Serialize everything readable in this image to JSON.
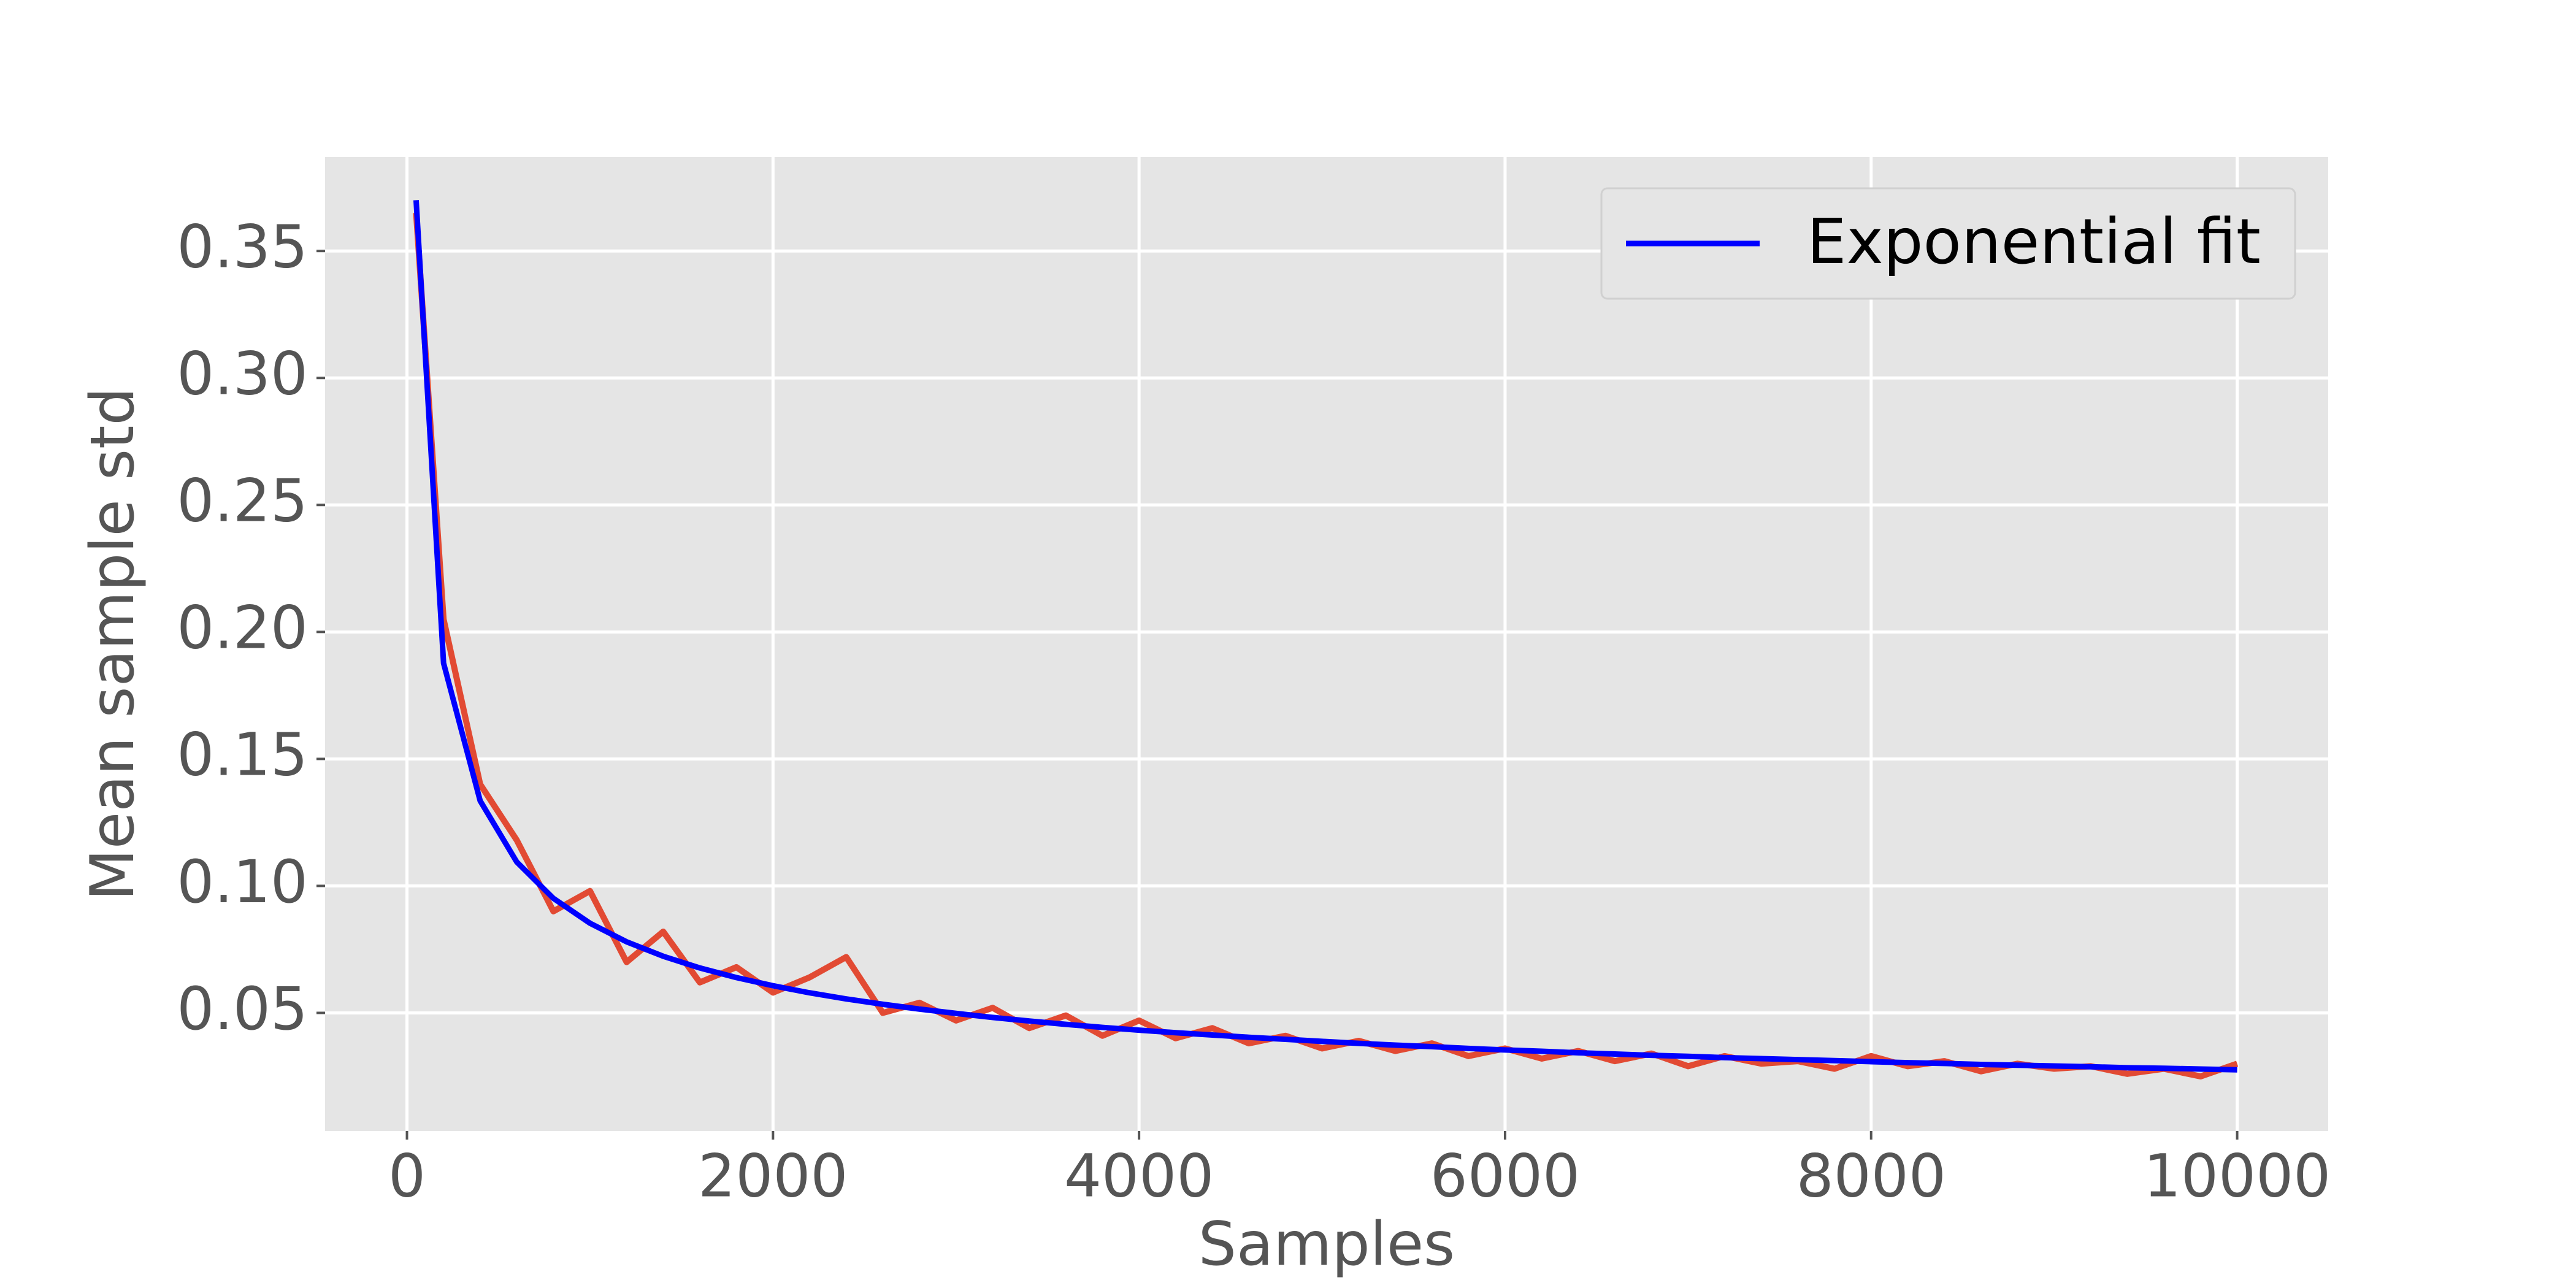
{
  "chart_data": {
    "type": "line",
    "x_label": "Samples",
    "y_label": "Mean sample std",
    "x": [
      50,
      200,
      400,
      600,
      800,
      1000,
      1200,
      1400,
      1600,
      1800,
      2000,
      2200,
      2400,
      2600,
      2800,
      3000,
      3200,
      3400,
      3600,
      3800,
      4000,
      4200,
      4400,
      4600,
      4800,
      5000,
      5200,
      5400,
      5600,
      5800,
      6000,
      6200,
      6400,
      6600,
      6800,
      7000,
      7200,
      7400,
      7600,
      7800,
      8000,
      8200,
      8400,
      8600,
      8800,
      9000,
      9200,
      9400,
      9600,
      9800,
      10000
    ],
    "series": [
      {
        "color": "#e24a33",
        "values": [
          0.365,
          0.205,
          0.14,
          0.118,
          0.09,
          0.098,
          0.07,
          0.082,
          0.062,
          0.068,
          0.058,
          0.064,
          0.072,
          0.05,
          0.054,
          0.047,
          0.052,
          0.044,
          0.049,
          0.041,
          0.047,
          0.04,
          0.044,
          0.038,
          0.041,
          0.036,
          0.039,
          0.035,
          0.038,
          0.033,
          0.036,
          0.032,
          0.035,
          0.031,
          0.034,
          0.029,
          0.033,
          0.03,
          0.031,
          0.028,
          0.033,
          0.029,
          0.031,
          0.027,
          0.03,
          0.028,
          0.029,
          0.026,
          0.028,
          0.025,
          0.03
        ]
      },
      {
        "name": "Exponential fit",
        "color": "#0000ff",
        "values": [
          0.37,
          0.1877,
          0.1335,
          0.1094,
          0.0951,
          0.0853,
          0.078,
          0.0723,
          0.0677,
          0.0639,
          0.0607,
          0.0579,
          0.0555,
          0.0534,
          0.0515,
          0.0498,
          0.0482,
          0.0468,
          0.0455,
          0.0443,
          0.0432,
          0.0422,
          0.0413,
          0.0404,
          0.0396,
          0.0388,
          0.038,
          0.0373,
          0.0367,
          0.036,
          0.0354,
          0.0349,
          0.0343,
          0.0338,
          0.0333,
          0.0329,
          0.0324,
          0.032,
          0.0316,
          0.0312,
          0.0308,
          0.0304,
          0.0301,
          0.0297,
          0.0294,
          0.0291,
          0.0288,
          0.0284,
          0.0282,
          0.0279,
          0.0276
        ]
      }
    ],
    "xlim": [
      -447.5,
      10497.5
    ],
    "xticks": [
      0,
      2000,
      4000,
      6000,
      8000,
      10000
    ],
    "ylim": [
      0.0035,
      0.387
    ],
    "yticks": [
      {
        "value": 0.05,
        "label": "0.05"
      },
      {
        "value": 0.1,
        "label": "0.10"
      },
      {
        "value": 0.15,
        "label": "0.15"
      },
      {
        "value": 0.2,
        "label": "0.20"
      },
      {
        "value": 0.25,
        "label": "0.25"
      },
      {
        "value": 0.3,
        "label": "0.30"
      },
      {
        "value": 0.35,
        "label": "0.35"
      }
    ],
    "grid": true,
    "legend": "upper right"
  }
}
